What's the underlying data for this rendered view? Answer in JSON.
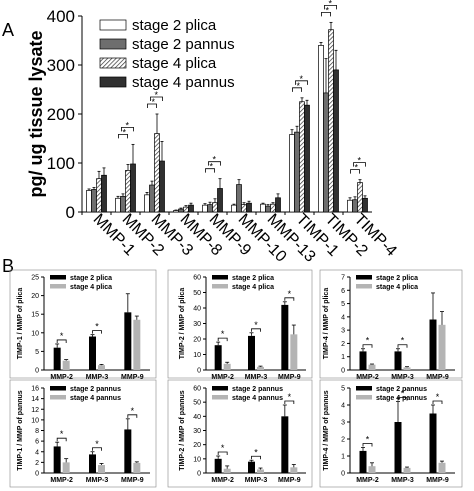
{
  "panel_labels": [
    "A",
    "B"
  ],
  "colors": {
    "s2plica": "#ffffff",
    "s2pannus": "#6e6e6e",
    "s4plica": "hatch",
    "s4pannus": "#303030",
    "black": "#000000",
    "grey": "#b4b4b4"
  },
  "chart_data": [
    {
      "type": "bar",
      "panel": "A",
      "ylabel": "pg/ ug tissue lysate",
      "ylim": [
        0,
        400
      ],
      "yticks": [
        0,
        100,
        200,
        300,
        400
      ],
      "categories": [
        "MMP-1",
        "MMP-2",
        "MMP-3",
        "MMP-8",
        "MMP-9",
        "MMP-10",
        "MMP-13",
        "TIMP-1",
        "TIMP-2",
        "TIMP-4"
      ],
      "legend": [
        "stage 2 plica",
        "stage 2 pannus",
        "stage 4 plica",
        "stage 4 pannus"
      ],
      "legend_position": "top-left",
      "series": [
        {
          "name": "stage 2 plica",
          "values": [
            44,
            28,
            35,
            3,
            14,
            14,
            16,
            158,
            340,
            24
          ],
          "errors": [
            3,
            4,
            5,
            1,
            3,
            2,
            2,
            10,
            6,
            5
          ]
        },
        {
          "name": "stage 2 pannus",
          "values": [
            46,
            32,
            55,
            6,
            15,
            56,
            12,
            163,
            243,
            25
          ],
          "errors": [
            4,
            5,
            8,
            2,
            5,
            10,
            3,
            12,
            70,
            6
          ]
        },
        {
          "name": "stage 4 plica",
          "values": [
            68,
            85,
            160,
            10,
            19,
            15,
            16,
            225,
            372,
            60
          ],
          "errors": [
            15,
            12,
            40,
            3,
            8,
            4,
            3,
            8,
            15,
            6
          ]
        },
        {
          "name": "stage 4 pannus",
          "values": [
            75,
            98,
            104,
            14,
            48,
            18,
            29,
            218,
            290,
            28
          ],
          "errors": [
            15,
            40,
            40,
            4,
            20,
            4,
            8,
            10,
            40,
            5
          ]
        }
      ],
      "significance": [
        {
          "category": "MMP-2",
          "marks": "*"
        },
        {
          "category": "MMP-3",
          "marks": "*"
        },
        {
          "category": "MMP-9",
          "marks": "*"
        },
        {
          "category": "TIMP-1",
          "marks": "*"
        },
        {
          "category": "TIMP-2",
          "marks": "*"
        },
        {
          "category": "TIMP-4",
          "marks": "*"
        }
      ]
    },
    {
      "type": "bar",
      "panel": "B1",
      "ylabel": "TIMP-1 / MMP of plica",
      "ylim": [
        0,
        25
      ],
      "yticks": [
        0,
        5,
        10,
        15,
        20,
        25
      ],
      "categories": [
        "MMP-2",
        "MMP-3",
        "MMP-9"
      ],
      "legend": [
        "stage 2 plica",
        "stage 4 plica"
      ],
      "series": [
        {
          "name": "stage 2 plica",
          "values": [
            6,
            9,
            15.5
          ],
          "errors": [
            1,
            0.5,
            5
          ]
        },
        {
          "name": "stage 4 plica",
          "values": [
            2.5,
            1.3,
            13.5
          ],
          "errors": [
            0.3,
            0.2,
            1
          ]
        }
      ],
      "significance": [
        "*",
        "*",
        ""
      ]
    },
    {
      "type": "bar",
      "panel": "B2",
      "ylabel": "TIMP-2 / MMP of plica",
      "ylim": [
        0,
        60
      ],
      "yticks": [
        0,
        10,
        20,
        30,
        40,
        50,
        60
      ],
      "categories": [
        "MMP-2",
        "MMP-3",
        "MMP-9"
      ],
      "legend": [
        "stage 2 plica",
        "stage 4 plica"
      ],
      "series": [
        {
          "name": "stage 2 plica",
          "values": [
            16,
            22,
            42
          ],
          "errors": [
            2,
            2,
            2
          ]
        },
        {
          "name": "stage 4 plica",
          "values": [
            4,
            2,
            23
          ],
          "errors": [
            1,
            0.5,
            6
          ]
        }
      ],
      "significance": [
        "*",
        "*",
        "*"
      ]
    },
    {
      "type": "bar",
      "panel": "B3",
      "ylabel": "TIMP-4 / MMP of plica",
      "ylim": [
        0,
        7
      ],
      "yticks": [
        0,
        1,
        2,
        3,
        4,
        5,
        6,
        7
      ],
      "categories": [
        "MMP-2",
        "MMP-3",
        "MMP-9"
      ],
      "legend": [
        "stage 2 plica",
        "stage 4 plica"
      ],
      "series": [
        {
          "name": "stage 2 plica",
          "values": [
            1.4,
            1.4,
            3.8
          ],
          "errors": [
            0.2,
            0.2,
            2
          ]
        },
        {
          "name": "stage 4 plica",
          "values": [
            0.4,
            0.2,
            3.4
          ],
          "errors": [
            0.05,
            0.05,
            1
          ]
        }
      ],
      "significance": [
        "*",
        "*",
        ""
      ]
    },
    {
      "type": "bar",
      "panel": "B4",
      "ylabel": "TIMP-1 / MMP of pannus",
      "ylim": [
        0,
        16
      ],
      "yticks": [
        0,
        2,
        4,
        6,
        8,
        10,
        12,
        14,
        16
      ],
      "categories": [
        "MMP-2",
        "MMP-3",
        "MMP-9"
      ],
      "legend": [
        "stage 2 pannus",
        "stage 4 pannus"
      ],
      "series": [
        {
          "name": "stage 2 pannus",
          "values": [
            5,
            3.5,
            8.2
          ],
          "errors": [
            0.8,
            0.5,
            2
          ]
        },
        {
          "name": "stage 4 pannus",
          "values": [
            2,
            1.5,
            1.9
          ],
          "errors": [
            0.7,
            0.3,
            0.2
          ]
        }
      ],
      "significance": [
        "*",
        "*",
        "*"
      ]
    },
    {
      "type": "bar",
      "panel": "B5",
      "ylabel": "TIMP-2 / MMP of pannus",
      "ylim": [
        0,
        60
      ],
      "yticks": [
        0,
        10,
        20,
        30,
        40,
        50,
        60
      ],
      "categories": [
        "MMP-2",
        "MMP-3",
        "MMP-9"
      ],
      "legend": [
        "stage 2 pannus",
        "stage 4 pannus"
      ],
      "series": [
        {
          "name": "stage 2 pannus",
          "values": [
            10,
            8,
            40
          ],
          "errors": [
            2,
            1,
            8
          ]
        },
        {
          "name": "stage 4 pannus",
          "values": [
            3,
            2.5,
            4
          ],
          "errors": [
            2,
            1,
            2
          ]
        }
      ],
      "significance": [
        "*",
        "*",
        "*"
      ]
    },
    {
      "type": "bar",
      "panel": "B6",
      "ylabel": "TIMP-4 / MMP of pannus",
      "ylim": [
        0,
        5
      ],
      "yticks": [
        0,
        1,
        2,
        3,
        4,
        5
      ],
      "categories": [
        "MMP-2",
        "MMP-3",
        "MMP-9"
      ],
      "legend": [
        "stage 2 pannus",
        "stage 4 pannus"
      ],
      "series": [
        {
          "name": "stage 2 pannus",
          "values": [
            1.3,
            3.0,
            3.5
          ],
          "errors": [
            0.2,
            1.2,
            0.5
          ]
        },
        {
          "name": "stage 4 pannus",
          "values": [
            0.4,
            0.3,
            0.6
          ],
          "errors": [
            0.2,
            0.05,
            0.1
          ]
        }
      ],
      "significance": [
        "*",
        "*",
        "*"
      ]
    }
  ]
}
